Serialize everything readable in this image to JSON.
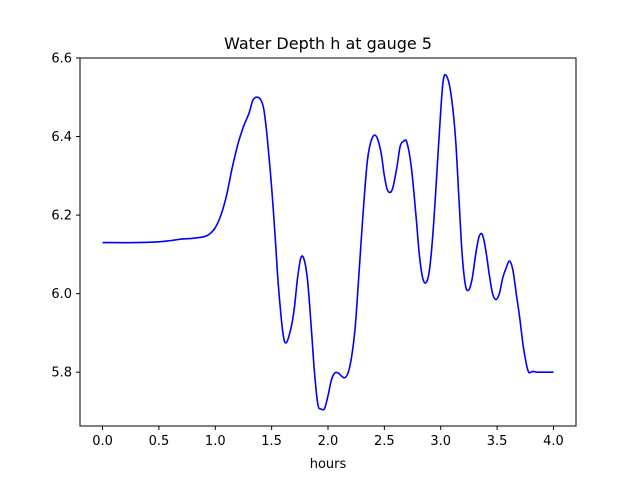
{
  "chart_data": {
    "type": "line",
    "title": "Water Depth h at gauge 5",
    "xlabel": "hours",
    "ylabel": "",
    "xlim": [
      -0.2,
      4.2
    ],
    "ylim": [
      5.663,
      6.6
    ],
    "x_ticks": [
      0.0,
      0.5,
      1.0,
      1.5,
      2.0,
      2.5,
      3.0,
      3.5,
      4.0
    ],
    "x_tick_labels": [
      "0.0",
      "0.5",
      "1.0",
      "1.5",
      "2.0",
      "2.5",
      "3.0",
      "3.5",
      "4.0"
    ],
    "y_ticks": [
      5.8,
      6.0,
      6.2,
      6.4,
      6.6
    ],
    "y_tick_labels": [
      "5.8",
      "6.0",
      "6.2",
      "6.4",
      "6.6"
    ],
    "grid": false,
    "legend": "none",
    "line_color": "#0000ff",
    "series": [
      {
        "x": [
          0.0,
          0.3,
          0.5,
          0.6,
          0.7,
          0.8,
          0.9,
          0.95,
          1.0,
          1.05,
          1.1,
          1.15,
          1.2,
          1.25,
          1.3,
          1.33,
          1.36,
          1.4,
          1.43,
          1.46,
          1.5,
          1.53,
          1.56,
          1.6,
          1.63,
          1.67,
          1.7,
          1.73,
          1.76,
          1.79,
          1.82,
          1.85,
          1.88,
          1.91,
          1.94,
          1.97,
          2.0,
          2.03,
          2.06,
          2.09,
          2.12,
          2.15,
          2.18,
          2.21,
          2.24,
          2.27,
          2.31,
          2.35,
          2.39,
          2.43,
          2.47,
          2.5,
          2.53,
          2.57,
          2.61,
          2.64,
          2.67,
          2.7,
          2.74,
          2.78,
          2.81,
          2.84,
          2.87,
          2.9,
          2.93,
          2.96,
          2.99,
          3.02,
          3.05,
          3.09,
          3.13,
          3.16,
          3.19,
          3.22,
          3.25,
          3.28,
          3.31,
          3.34,
          3.37,
          3.4,
          3.43,
          3.46,
          3.49,
          3.52,
          3.55,
          3.58,
          3.61,
          3.64,
          3.67,
          3.7,
          3.73,
          3.76,
          3.78,
          3.8,
          3.82,
          3.85,
          3.88,
          3.91,
          3.94,
          3.97,
          4.0
        ],
        "y": [
          6.13,
          6.13,
          6.132,
          6.135,
          6.139,
          6.141,
          6.145,
          6.152,
          6.168,
          6.2,
          6.25,
          6.32,
          6.38,
          6.425,
          6.46,
          6.49,
          6.5,
          6.495,
          6.47,
          6.4,
          6.27,
          6.15,
          6.02,
          5.9,
          5.875,
          5.91,
          5.96,
          6.04,
          6.092,
          6.085,
          6.03,
          5.92,
          5.8,
          5.718,
          5.706,
          5.708,
          5.74,
          5.78,
          5.798,
          5.798,
          5.79,
          5.786,
          5.8,
          5.84,
          5.91,
          6.03,
          6.2,
          6.34,
          6.395,
          6.4,
          6.36,
          6.3,
          6.262,
          6.265,
          6.32,
          6.375,
          6.388,
          6.385,
          6.32,
          6.2,
          6.1,
          6.04,
          6.028,
          6.06,
          6.15,
          6.28,
          6.42,
          6.538,
          6.555,
          6.51,
          6.4,
          6.25,
          6.1,
          6.02,
          6.01,
          6.04,
          6.1,
          6.145,
          6.15,
          6.11,
          6.05,
          6.0,
          5.985,
          6.0,
          6.04,
          6.065,
          6.083,
          6.06,
          6.0,
          5.94,
          5.87,
          5.82,
          5.8,
          5.8,
          5.802,
          5.8,
          5.8,
          5.8,
          5.8,
          5.8,
          5.8
        ]
      }
    ]
  }
}
